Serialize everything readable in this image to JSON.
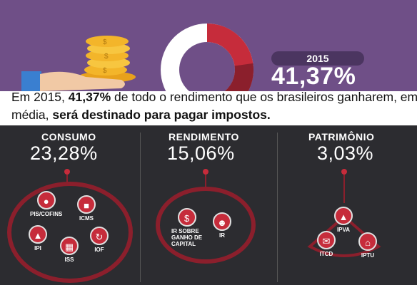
{
  "header": {
    "year": "2015",
    "total_percent": "41,37%",
    "donut_fraction": 0.4137,
    "colors": {
      "purple": "#6f4f87",
      "accent_red": "#c62c3b",
      "dark": "#2c2c30"
    }
  },
  "caption": {
    "part1": "Em 2015, ",
    "bold1": "41,37%",
    "part2": " de todo o rendimento  que os brasileiros ganharem, em média, ",
    "bold2": "será destinado para pagar impostos."
  },
  "columns": [
    {
      "title": "CONSUMO",
      "percent": "23,28%",
      "taxes": [
        {
          "label": "PIS/COFINS",
          "icon": "people-icon"
        },
        {
          "label": "ICMS",
          "icon": "truck-icon"
        },
        {
          "label": "IPI",
          "icon": "factory-icon"
        },
        {
          "label": "ISS",
          "icon": "building-icon"
        },
        {
          "label": "IOF",
          "icon": "exchange-icon"
        }
      ]
    },
    {
      "title": "RENDIMENTO",
      "percent": "15,06%",
      "taxes": [
        {
          "label": "IR SOBRE\nGANHO DE\nCAPITAL",
          "icon": "house-money-icon"
        },
        {
          "label": "IR",
          "icon": "person-money-icon"
        }
      ]
    },
    {
      "title": "PATRIMÔNIO",
      "percent": "3,03%",
      "taxes": [
        {
          "label": "IPVA",
          "icon": "car-icon"
        },
        {
          "label": "ITCD",
          "icon": "document-icon"
        },
        {
          "label": "IPTU",
          "icon": "home-icon"
        }
      ]
    }
  ]
}
